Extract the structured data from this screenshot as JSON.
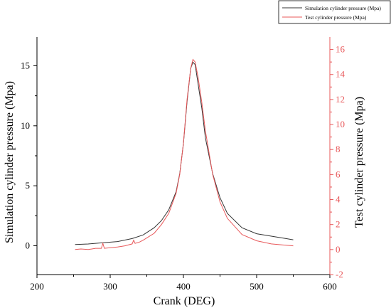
{
  "chart_data": {
    "type": "line",
    "xlabel": "Crank (DEG)",
    "ylabel": "Simulation cylinder pressure (Mpa)",
    "y2label": "Test cylinder pressure (Mpa)",
    "xlim": [
      200,
      600
    ],
    "ylim": [
      -2.4,
      17.4
    ],
    "y2lim": [
      -2,
      17
    ],
    "x_ticks": [
      "200",
      "300",
      "400",
      "500",
      "600"
    ],
    "y_ticks": [
      "0",
      "5",
      "10",
      "15"
    ],
    "y2_ticks": [
      "-2",
      "0",
      "2",
      "4",
      "6",
      "8",
      "10",
      "12",
      "14",
      "16"
    ],
    "grid": false,
    "legend": "top-right",
    "colors": {
      "simulation": "#333333",
      "test": "#e8585a",
      "right_axis": "#e8585a"
    },
    "series": [
      {
        "name": "Simulation cylinder pressure (Mpa)",
        "axis": "left",
        "x": [
          252,
          270,
          290,
          310,
          330,
          345,
          360,
          370,
          380,
          390,
          395,
          400,
          405,
          410,
          413,
          416,
          420,
          425,
          430,
          440,
          450,
          460,
          480,
          500,
          520,
          540,
          550
        ],
        "values": [
          0.1,
          0.15,
          0.25,
          0.35,
          0.6,
          0.9,
          1.5,
          2.1,
          3.0,
          4.5,
          6.0,
          8.5,
          12.0,
          14.8,
          15.3,
          15.1,
          13.5,
          11.5,
          9.0,
          6.0,
          4.0,
          2.7,
          1.5,
          1.0,
          0.8,
          0.6,
          0.5
        ]
      },
      {
        "name": "Test cylinder pressure (Mpa)",
        "axis": "right",
        "x": [
          252,
          260,
          270,
          280,
          288,
          290,
          292,
          300,
          310,
          320,
          330,
          332,
          334,
          340,
          345,
          360,
          370,
          380,
          390,
          395,
          400,
          405,
          410,
          413,
          416,
          420,
          425,
          430,
          440,
          450,
          460,
          480,
          500,
          520,
          540,
          550
        ],
        "values": [
          0.0,
          0.05,
          0.0,
          0.1,
          0.1,
          0.5,
          0.1,
          0.15,
          0.2,
          0.3,
          0.45,
          0.75,
          0.5,
          0.6,
          0.75,
          1.3,
          2.0,
          2.9,
          4.5,
          6.0,
          8.5,
          12.0,
          14.5,
          15.2,
          15.0,
          13.8,
          11.8,
          9.5,
          6.0,
          3.8,
          2.5,
          1.2,
          0.7,
          0.45,
          0.35,
          0.3
        ]
      }
    ]
  }
}
